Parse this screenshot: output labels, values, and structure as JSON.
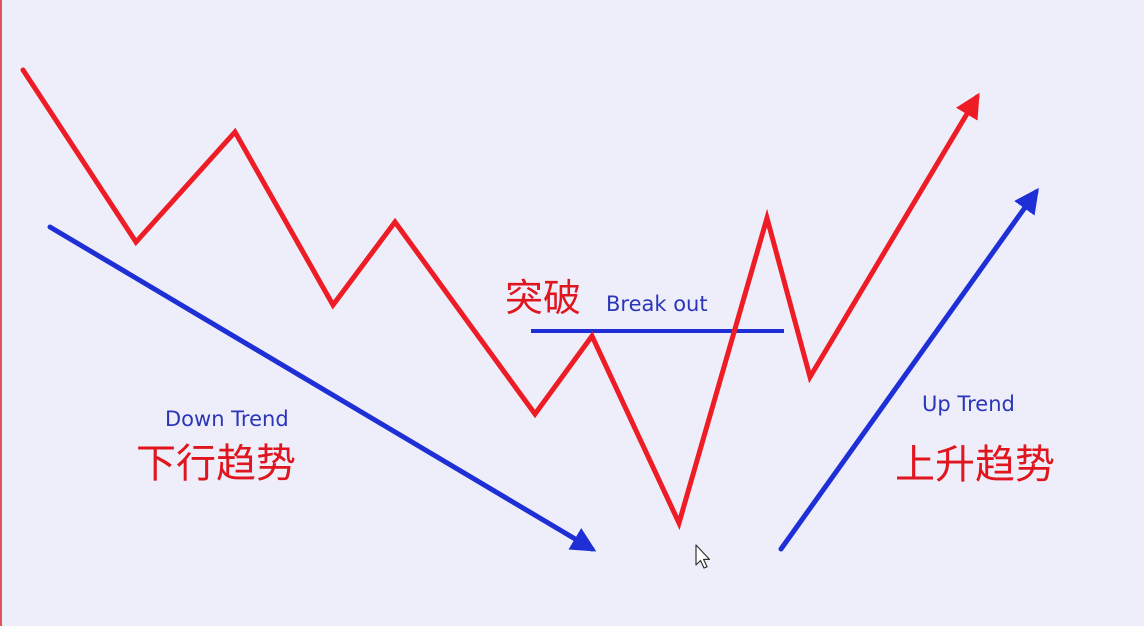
{
  "colors": {
    "background": "#eeeefb",
    "price_line": "#ee1c25",
    "trend_line": "#1f2fd6",
    "label_en": "#2b35b8",
    "label_zh": "#e0161f"
  },
  "labels": {
    "down_trend_en": "Down Trend",
    "down_trend_zh": "下行趋势",
    "break_out_zh": "突破",
    "break_out_en": "Break out",
    "up_trend_en": "Up Trend",
    "up_trend_zh": "上升趋势"
  },
  "icons": {
    "cursor": "mouse-pointer-icon"
  }
}
